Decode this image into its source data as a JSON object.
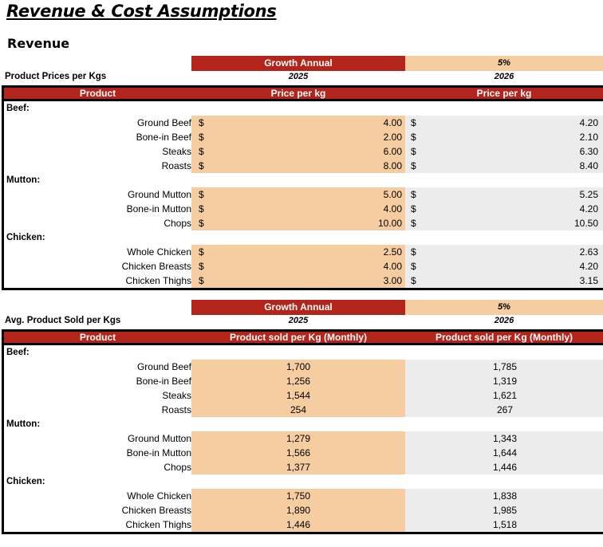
{
  "page": {
    "title": "Revenue & Cost Assumptions",
    "subtitle": "Revenue"
  },
  "prices": {
    "growth_label": "Growth Annual",
    "growth_value": "5%",
    "table_name": "Product Prices per Kgs",
    "year1": "2025",
    "year2": "2026",
    "headers": {
      "product": "Product",
      "col1": "Price per kg",
      "col2": "Price per kg"
    },
    "currency": "$",
    "categories": [
      {
        "name": "Beef:",
        "items": [
          {
            "product": "Ground Beef",
            "v2025": "4.00",
            "v2026": "4.20"
          },
          {
            "product": "Bone-in Beef",
            "v2025": "2.00",
            "v2026": "2.10"
          },
          {
            "product": "Steaks",
            "v2025": "6.00",
            "v2026": "6.30"
          },
          {
            "product": "Roasts",
            "v2025": "8.00",
            "v2026": "8.40"
          }
        ]
      },
      {
        "name": "Mutton:",
        "items": [
          {
            "product": "Ground Mutton",
            "v2025": "5.00",
            "v2026": "5.25"
          },
          {
            "product": "Bone-in Mutton",
            "v2025": "4.00",
            "v2026": "4.20"
          },
          {
            "product": "Chops",
            "v2025": "10.00",
            "v2026": "10.50"
          }
        ]
      },
      {
        "name": "Chicken:",
        "items": [
          {
            "product": "Whole Chicken",
            "v2025": "2.50",
            "v2026": "2.63"
          },
          {
            "product": "Chicken Breasts",
            "v2025": "4.00",
            "v2026": "4.20"
          },
          {
            "product": "Chicken Thighs",
            "v2025": "3.00",
            "v2026": "3.15"
          }
        ]
      }
    ]
  },
  "sold": {
    "growth_label": "Growth Annual",
    "growth_value": "5%",
    "table_name": "Avg. Product Sold per Kgs",
    "year1": "2025",
    "year2": "2026",
    "headers": {
      "product": "Product",
      "col1": "Product sold per Kg (Monthly)",
      "col2": "Product sold per Kg (Monthly)"
    },
    "categories": [
      {
        "name": "Beef:",
        "items": [
          {
            "product": "Ground Beef",
            "v2025": "1,700",
            "v2026": "1,785"
          },
          {
            "product": "Bone-in Beef",
            "v2025": "1,256",
            "v2026": "1,319"
          },
          {
            "product": "Steaks",
            "v2025": "1,544",
            "v2026": "1,621"
          },
          {
            "product": "Roasts",
            "v2025": "254",
            "v2026": "267"
          }
        ]
      },
      {
        "name": "Mutton:",
        "items": [
          {
            "product": "Ground Mutton",
            "v2025": "1,279",
            "v2026": "1,343"
          },
          {
            "product": "Bone-in Mutton",
            "v2025": "1,566",
            "v2026": "1,644"
          },
          {
            "product": "Chops",
            "v2025": "1,377",
            "v2026": "1,446"
          }
        ]
      },
      {
        "name": "Chicken:",
        "items": [
          {
            "product": "Whole Chicken",
            "v2025": "1,750",
            "v2026": "1,838"
          },
          {
            "product": "Chicken Breasts",
            "v2025": "1,890",
            "v2026": "1,985"
          },
          {
            "product": "Chicken Thighs",
            "v2025": "1,446",
            "v2026": "1,518"
          }
        ]
      }
    ]
  }
}
